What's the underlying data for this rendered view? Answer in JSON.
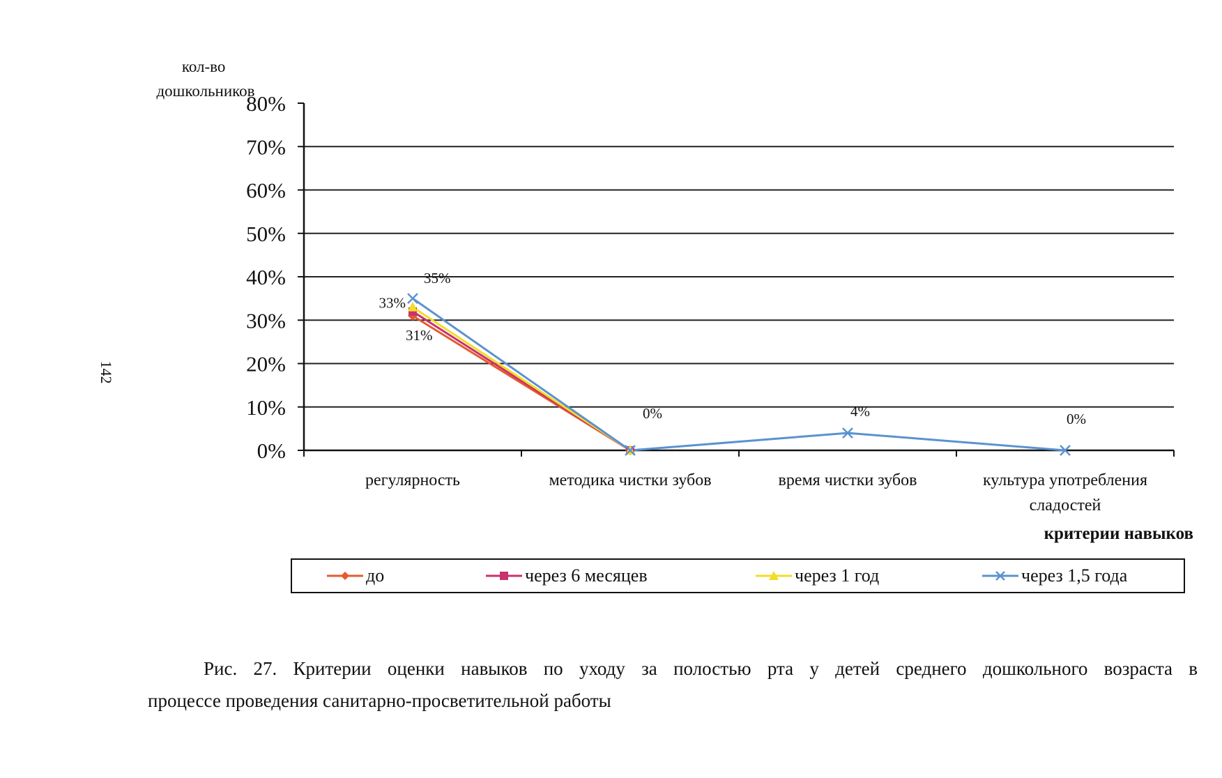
{
  "page_number": "142",
  "chart_data": {
    "type": "line",
    "ylabel": "кол-во дошкольников",
    "ylabel_lines": [
      "кол-во",
      "дошкольников"
    ],
    "xlabel": "критерии навыков",
    "categories": [
      "регулярность",
      "методика чистки зубов",
      "время чистки зубов",
      "культура употребления сладостей"
    ],
    "category_lines": [
      [
        "регулярность"
      ],
      [
        "методика чистки зубов"
      ],
      [
        "время чистки зубов"
      ],
      [
        "культура употребления",
        "сладостей"
      ]
    ],
    "ylim": [
      0,
      80
    ],
    "yticks": [
      "0%",
      "10%",
      "20%",
      "30%",
      "40%",
      "50%",
      "60%",
      "70%",
      "80%"
    ],
    "grid": true,
    "legend_position": "bottom",
    "series": [
      {
        "name": "до",
        "values": [
          31,
          0,
          null,
          null
        ],
        "color": "#e65a2e",
        "marker": "diamond"
      },
      {
        "name": "через 6 месяцев",
        "values": [
          32,
          0,
          null,
          null
        ],
        "color": "#c8326e",
        "marker": "square"
      },
      {
        "name": "через 1 год",
        "values": [
          33,
          0,
          null,
          null
        ],
        "color": "#f2dd27",
        "marker": "triangle"
      },
      {
        "name": "через 1,5 года",
        "values": [
          35,
          0,
          4,
          0
        ],
        "color": "#5b92cf",
        "marker": "x"
      }
    ],
    "data_labels": [
      {
        "series": 3,
        "index": 0,
        "text": "35%"
      },
      {
        "series": 2,
        "index": 0,
        "text": "33%"
      },
      {
        "series": 0,
        "index": 0,
        "text": "31%"
      },
      {
        "series": 3,
        "index": 1,
        "text": "0%"
      },
      {
        "series": 3,
        "index": 2,
        "text": "4%"
      },
      {
        "series": 3,
        "index": 3,
        "text": "0%"
      }
    ]
  },
  "caption": {
    "line1": "Рис. 27. Критерии оценки навыков по уходу за полостью рта у детей среднего дошкольного возраста в",
    "line2": "процессе проведения санитарно-просветительной работы"
  }
}
